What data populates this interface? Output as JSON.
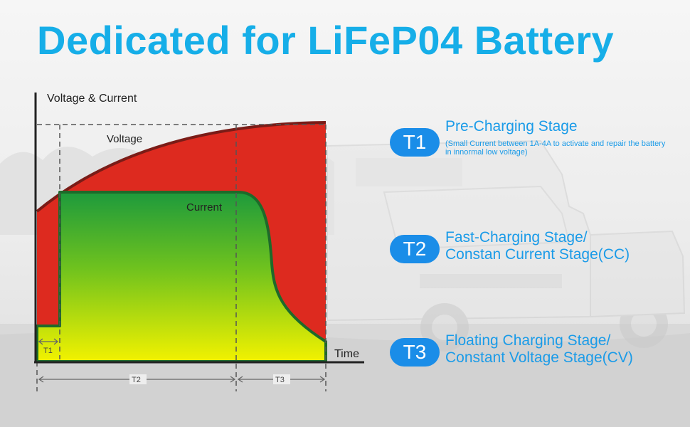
{
  "title": "Dedicated for LiFeP04 Battery",
  "chart": {
    "y_axis_label": "Voltage & Current",
    "x_axis_label": "Time",
    "voltage_label": "Voltage",
    "current_label": "Current",
    "span_t1": "T1",
    "span_t2": "T2",
    "span_t3": "T3"
  },
  "stages": [
    {
      "badge": "T1",
      "title": "Pre-Charging Stage",
      "note": "(Small Current between 1A-4A to activate and repair the battery in innormal low voltage)"
    },
    {
      "badge": "T2",
      "title_line1": "Fast-Charging Stage/",
      "title_line2": "Constan Current Stage(CC)"
    },
    {
      "badge": "T3",
      "title_line1": "Floating Charging Stage/",
      "title_line2": "Constant Voltage Stage(CV)"
    }
  ],
  "colors": {
    "accent": "#16aee8",
    "badge": "#1a8de8",
    "voltage_fill": "#dd2a1f",
    "current_top": "#1d9a3c",
    "current_bottom": "#f2f200"
  }
}
